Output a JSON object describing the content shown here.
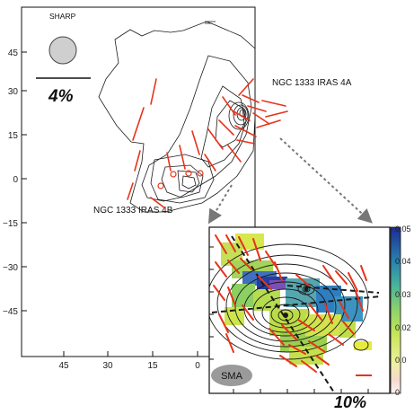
{
  "main_panel": {
    "instrument_label": "SHARP",
    "scale_bar_label": "4%",
    "source_labels": [
      "NGC 1333 IRAS 4A",
      "NGC 1333 IRAS 4B"
    ],
    "y_ticks": [
      "45",
      "30",
      "15",
      "0",
      "−15",
      "−30",
      "−45"
    ],
    "x_ticks": [
      "45",
      "30",
      "15",
      "0"
    ]
  },
  "inset_panel": {
    "instrument_label": "SMA",
    "scale_bar_label": "10%"
  },
  "colorbar": {
    "ticks": [
      "0.05",
      "0.04",
      "0.03",
      "0.02",
      "0.0",
      "0"
    ]
  },
  "colors": {
    "vectors": "#e8331b",
    "contours": "#1a1a1a",
    "arrows": "#777777"
  }
}
